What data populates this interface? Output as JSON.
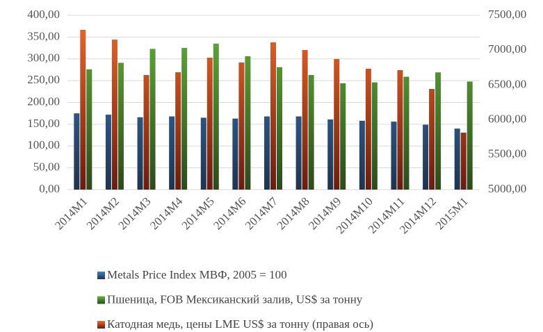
{
  "chart_data": {
    "type": "bar",
    "categories": [
      "2014M1",
      "2014M2",
      "2014M3",
      "2014M4",
      "2014M5",
      "2014M6",
      "2014M7",
      "2014M8",
      "2014M9",
      "2014M10",
      "2014M11",
      "2014M12",
      "2015M1"
    ],
    "series": [
      {
        "name": "Metals Price Index МВФ, 2005 = 100",
        "color": "#3f80c6",
        "values": [
          175,
          172,
          166,
          168,
          165,
          163,
          168,
          168,
          161,
          158,
          156,
          149,
          140
        ]
      },
      {
        "name": "Пшеница, FOB Мексиканский залив, US$ за тонну",
        "color": "#66b23c",
        "values": [
          276,
          291,
          323,
          325,
          335,
          306,
          281,
          263,
          244,
          246,
          259,
          269,
          248
        ]
      },
      {
        "name": "Катодная медь, цены LME US$ за тонну (правая ось)",
        "color": "#ee6a2c",
        "axis": "y2",
        "values": [
          7291,
          7151,
          6643,
          6683,
          6892,
          6823,
          7112,
          7002,
          6873,
          6733,
          6713,
          6444,
          5817
        ]
      }
    ],
    "ylim": [
      0,
      400
    ],
    "yticks": [
      {
        "value": 0,
        "label": "0,00"
      },
      {
        "value": 50,
        "label": "50,00"
      },
      {
        "value": 100,
        "label": "100,00"
      },
      {
        "value": 150,
        "label": "150,00"
      },
      {
        "value": 200,
        "label": "200,00"
      },
      {
        "value": 250,
        "label": "250,00"
      },
      {
        "value": 300,
        "label": "300,00"
      },
      {
        "value": 350,
        "label": "350,00"
      },
      {
        "value": 400,
        "label": "400,00"
      }
    ],
    "y2lim": [
      5000,
      7500
    ],
    "y2ticks": [
      {
        "value": 5000,
        "label": "5000,00"
      },
      {
        "value": 5500,
        "label": "5500,00"
      },
      {
        "value": 6000,
        "label": "6000,00"
      },
      {
        "value": 6500,
        "label": "6500,00"
      },
      {
        "value": 7000,
        "label": "7000,00"
      },
      {
        "value": 7500,
        "label": "7500,00"
      }
    ],
    "grid": true,
    "legend": "bottom"
  }
}
